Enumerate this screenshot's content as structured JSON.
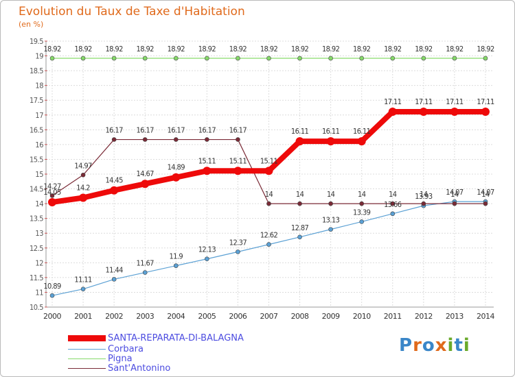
{
  "title": "Evolution du Taux de Taxe d'Habitation",
  "subtitle": "(en %)",
  "logo": {
    "text": "Proxiti",
    "letters": [
      "P",
      "r",
      "o",
      "x",
      "i",
      "t",
      "i"
    ],
    "colors": [
      "#3a86c8",
      "#e06a1c",
      "#3a86c8",
      "#e06a1c",
      "#6aaa2a",
      "#3a86c8",
      "#6aaa2a"
    ]
  },
  "chart_data": {
    "type": "line",
    "title": "Evolution du Taux de Taxe d'Habitation",
    "ylabel": "(en %)",
    "xlabel": "",
    "grid": true,
    "ylim": [
      10.5,
      19.5
    ],
    "yticks": [
      "10.5",
      "11",
      "11.5",
      "12",
      "12.5",
      "13",
      "13.5",
      "14",
      "14.5",
      "15",
      "15.5",
      "16",
      "16.5",
      "17",
      "17.5",
      "18",
      "18.5",
      "19",
      "19.5"
    ],
    "x": [
      "2000",
      "2001",
      "2002",
      "2003",
      "2004",
      "2005",
      "2006",
      "2007",
      "2008",
      "2009",
      "2010",
      "2011",
      "2012",
      "2013",
      "2014"
    ],
    "series": [
      {
        "name": "SANTA-REPARATA-DI-BALAGNA",
        "color": "#ee0a0a",
        "values": [
          14.05,
          14.2,
          14.45,
          14.67,
          14.89,
          15.11,
          15.11,
          15.11,
          16.11,
          16.11,
          16.11,
          17.11,
          17.11,
          17.11,
          17.11
        ],
        "labels": [
          "14.05",
          "14.2",
          "14.45",
          "14.67",
          "14.89",
          "15.11",
          "15.11",
          "15.11",
          "16.11",
          "16.11",
          "16.11",
          "17.11",
          "17.11",
          "17.11",
          "17.11"
        ]
      },
      {
        "name": "Corbara",
        "color": "#5aa0d4",
        "values": [
          10.89,
          11.11,
          11.44,
          11.67,
          11.9,
          12.13,
          12.37,
          12.62,
          12.87,
          13.13,
          13.39,
          13.66,
          13.93,
          14.07,
          14.07
        ],
        "labels": [
          "10.89",
          "11.11",
          "11.44",
          "11.67",
          "11.9",
          "12.13",
          "12.37",
          "12.62",
          "12.87",
          "13.13",
          "13.39",
          "13.66",
          "13.93",
          "14.07",
          "14.07"
        ]
      },
      {
        "name": "Pigna",
        "color": "#86d96a",
        "values": [
          18.92,
          18.92,
          18.92,
          18.92,
          18.92,
          18.92,
          18.92,
          18.92,
          18.92,
          18.92,
          18.92,
          18.92,
          18.92,
          18.92,
          18.92
        ],
        "labels": [
          "18.92",
          "18.92",
          "18.92",
          "18.92",
          "18.92",
          "18.92",
          "18.92",
          "18.92",
          "18.92",
          "18.92",
          "18.92",
          "18.92",
          "18.92",
          "18.92",
          "18.92"
        ]
      },
      {
        "name": "Sant'Antonino",
        "color": "#7a2a36",
        "values": [
          14.27,
          14.97,
          16.17,
          16.17,
          16.17,
          16.17,
          16.17,
          14,
          14,
          14,
          14,
          14,
          14,
          14,
          14
        ],
        "labels": [
          "14.27",
          "14.97",
          "16.17",
          "16.17",
          "16.17",
          "16.17",
          "16.17",
          "14",
          "14",
          "14",
          "14",
          "14",
          "14",
          "14",
          "14"
        ]
      }
    ]
  }
}
